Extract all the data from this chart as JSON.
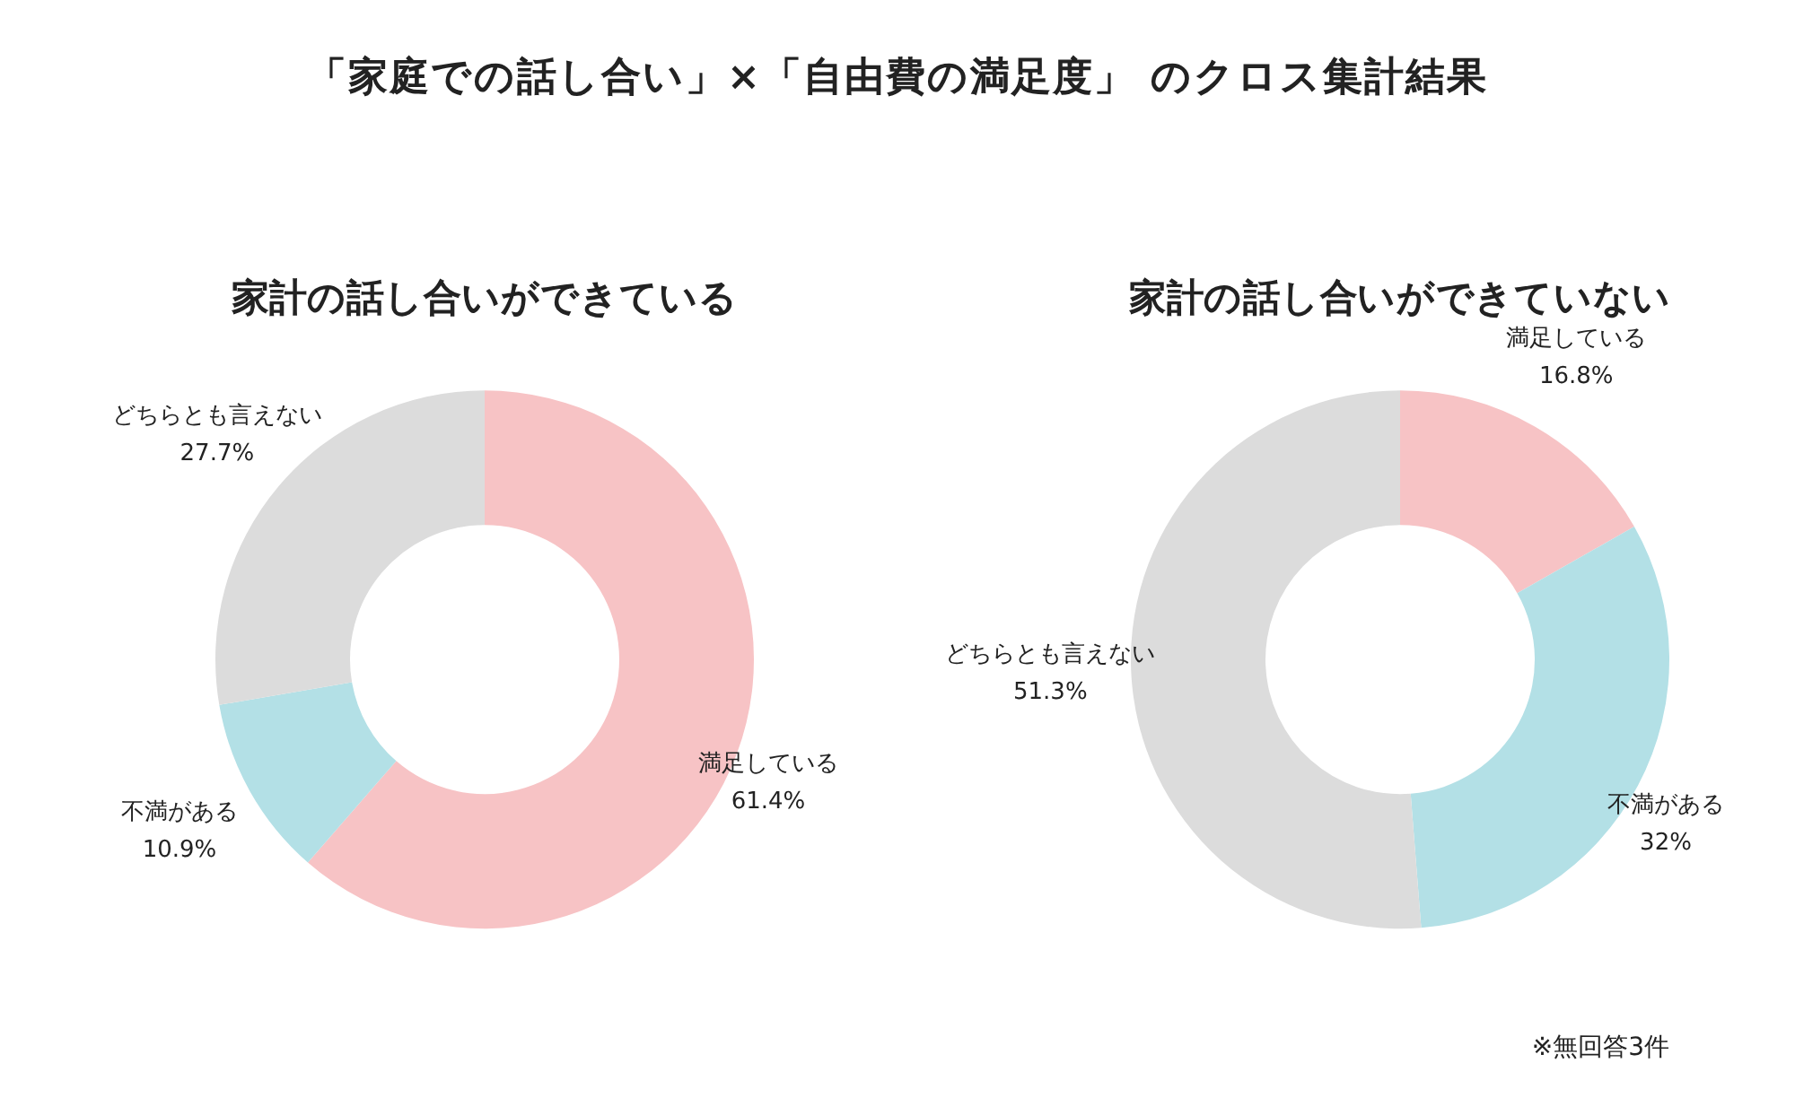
{
  "chart_data": [
    {
      "type": "other",
      "title": "「家庭での話し合い」×「自由費の満足度」 のクロス集計結果",
      "annotations": [
        "※無回答3件"
      ]
    },
    {
      "type": "donut",
      "title": "家計の話し合いができている",
      "categories": [
        "満足している",
        "不満がある",
        "どちらとも言えない"
      ],
      "values": [
        61.4,
        10.9,
        27.7
      ],
      "value_labels": [
        "61.4%",
        "10.9%",
        "27.7%"
      ],
      "colors": [
        "#f7c3c5",
        "#b3e0e6",
        "#dcdcdc"
      ]
    },
    {
      "type": "donut",
      "title": "家計の話し合いができていない",
      "categories": [
        "満足している",
        "不満がある",
        "どちらとも言えない"
      ],
      "values": [
        16.8,
        32,
        51.3
      ],
      "value_labels": [
        "16.8%",
        "32%",
        "51.3%"
      ],
      "colors": [
        "#f7c3c5",
        "#b3e0e6",
        "#dcdcdc"
      ]
    }
  ]
}
